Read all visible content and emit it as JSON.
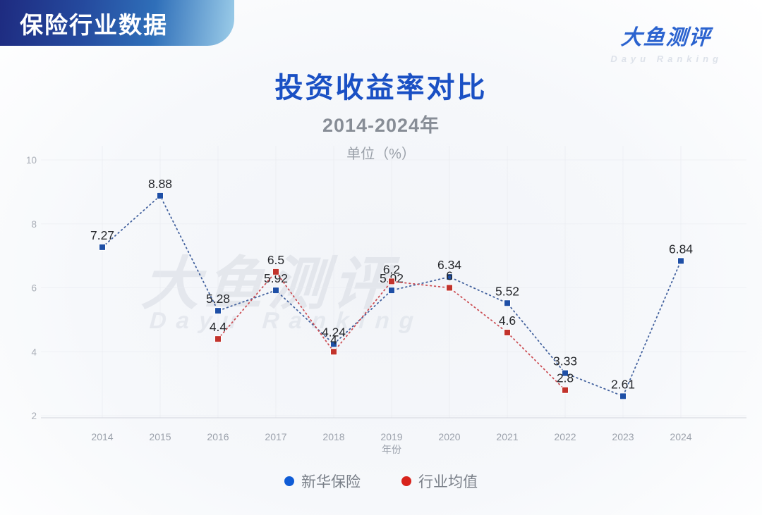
{
  "header": {
    "badge_label": "保险行业数据"
  },
  "logo": {
    "name": "大鱼测评",
    "subtitle": "Dayu Ranking"
  },
  "title": "投资收益率对比",
  "subtitle": "2014-2024年",
  "unit_label": "单位（%）",
  "watermark": {
    "line1": "大鱼测评",
    "line2": "Dayu Ranking"
  },
  "chart_data": {
    "type": "line",
    "title": "投资收益率对比",
    "subtitle": "2014-2024年",
    "unit": "%",
    "x": [
      "2014",
      "2015",
      "2016",
      "2017",
      "2018",
      "2019",
      "2020",
      "2021",
      "2022",
      "2023",
      "2024"
    ],
    "series": [
      {
        "name": "新华保险",
        "color": "#1e4fa6",
        "line_color": "#42619e",
        "marker": "square",
        "values": [
          7.27,
          8.88,
          5.28,
          5.92,
          4.24,
          5.92,
          6.34,
          5.52,
          3.33,
          2.61,
          6.84
        ]
      },
      {
        "name": "行业均值",
        "color": "#c2332c",
        "line_color": "#cc4e54",
        "marker": "square",
        "values": [
          null,
          null,
          4.4,
          6.5,
          4,
          6.2,
          6,
          4.6,
          2.8,
          null,
          null
        ]
      }
    ],
    "xlabel": "年份",
    "ylabel": "",
    "ylim": [
      2,
      10
    ],
    "yticks": [
      2,
      4,
      6,
      8,
      10
    ],
    "grid": true,
    "line_style": "dotted",
    "legend_position": "bottom"
  },
  "legend": {
    "items": [
      {
        "label": "新华保险",
        "color": "#0f5cd6"
      },
      {
        "label": "行业均值",
        "color": "#d8231c"
      }
    ]
  },
  "colors": {
    "title": "#1a50c4",
    "badge_gradient_start": "#1e2b80",
    "badge_gradient_end": "#9ccde9",
    "axis_text": "#9ba1ab",
    "data_label_text": "#26282c"
  }
}
